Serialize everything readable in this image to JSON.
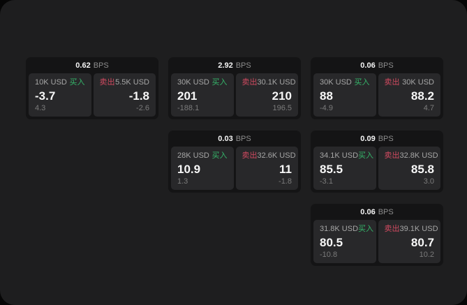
{
  "labels": {
    "bps_unit": "BPS",
    "buy": "买入",
    "sell": "卖出"
  },
  "colors": {
    "buy": "#35b56a",
    "sell": "#d04a60",
    "outside_bg": "#060606",
    "window_bg": "#1e1e1f",
    "card_bg": "#141415",
    "panel_bg": "#28282a"
  },
  "cards": [
    {
      "row": 1,
      "col": 1,
      "bps": "0.62",
      "buy": {
        "amount": "10K USD",
        "value": "-3.7",
        "delta": "4.3"
      },
      "sell": {
        "amount": "5.5K USD",
        "value": "-1.8",
        "delta": "-2.6"
      }
    },
    {
      "row": 1,
      "col": 2,
      "bps": "2.92",
      "buy": {
        "amount": "30K USD",
        "value": "201",
        "delta": "-188.1"
      },
      "sell": {
        "amount": "30.1K USD",
        "value": "210",
        "delta": "196.5"
      }
    },
    {
      "row": 1,
      "col": 3,
      "bps": "0.06",
      "buy": {
        "amount": "30K USD",
        "value": "88",
        "delta": "-4.9"
      },
      "sell": {
        "amount": "30K USD",
        "value": "88.2",
        "delta": "4.7"
      }
    },
    {
      "row": 2,
      "col": 2,
      "bps": "0.03",
      "buy": {
        "amount": "28K USD",
        "value": "10.9",
        "delta": "1.3"
      },
      "sell": {
        "amount": "32.6K USD",
        "value": "11",
        "delta": "-1.8"
      }
    },
    {
      "row": 2,
      "col": 3,
      "bps": "0.09",
      "buy": {
        "amount": "34.1K USD",
        "value": "85.5",
        "delta": "-3.1"
      },
      "sell": {
        "amount": "32.8K USD",
        "value": "85.8",
        "delta": "3.0"
      }
    },
    {
      "row": 3,
      "col": 3,
      "bps": "0.06",
      "buy": {
        "amount": "31.8K USD",
        "value": "80.5",
        "delta": "-10.8"
      },
      "sell": {
        "amount": "39.1K USD",
        "value": "80.7",
        "delta": "10.2"
      }
    }
  ]
}
